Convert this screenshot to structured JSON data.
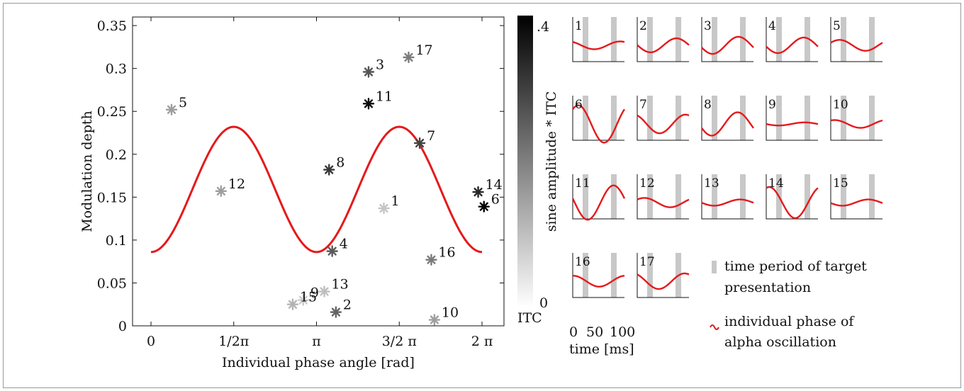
{
  "chart_data": [
    {
      "type": "scatter",
      "xlabel": "Individual phase angle [rad]",
      "ylabel": "Modulation depth",
      "xlim": [
        -0.35,
        6.7
      ],
      "ylim": [
        0,
        0.36
      ],
      "x_ticks": [
        {
          "value": 0,
          "label": "0"
        },
        {
          "value": 1.5708,
          "label": "1/2π"
        },
        {
          "value": 3.1416,
          "label": "π"
        },
        {
          "value": 4.7124,
          "label": "3/2 π"
        },
        {
          "value": 6.2832,
          "label": "2 π"
        }
      ],
      "y_ticks": [
        {
          "value": 0,
          "label": "0"
        },
        {
          "value": 0.05,
          "label": "0.05"
        },
        {
          "value": 0.1,
          "label": "0.1"
        },
        {
          "value": 0.15,
          "label": "0.15"
        },
        {
          "value": 0.2,
          "label": "0.2"
        },
        {
          "value": 0.25,
          "label": "0.25"
        },
        {
          "value": 0.3,
          "label": "0.3"
        },
        {
          "value": 0.35,
          "label": "0.35"
        }
      ],
      "points": [
        {
          "label": "1",
          "x": 4.42,
          "y": 0.137,
          "itc": 0.05
        },
        {
          "label": "2",
          "x": 3.51,
          "y": 0.016,
          "itc": 0.22
        },
        {
          "label": "3",
          "x": 4.13,
          "y": 0.296,
          "itc": 0.25
        },
        {
          "label": "4",
          "x": 3.44,
          "y": 0.087,
          "itc": 0.24
        },
        {
          "label": "5",
          "x": 0.39,
          "y": 0.252,
          "itc": 0.12
        },
        {
          "label": "6",
          "x": 6.32,
          "y": 0.139,
          "itc": 0.4
        },
        {
          "label": "7",
          "x": 5.1,
          "y": 0.213,
          "itc": 0.28
        },
        {
          "label": "8",
          "x": 3.38,
          "y": 0.182,
          "itc": 0.3
        },
        {
          "label": "9",
          "x": 2.89,
          "y": 0.03,
          "itc": 0.04
        },
        {
          "label": "10",
          "x": 5.38,
          "y": 0.007,
          "itc": 0.12
        },
        {
          "label": "11",
          "x": 4.13,
          "y": 0.259,
          "itc": 0.38
        },
        {
          "label": "12",
          "x": 1.33,
          "y": 0.157,
          "itc": 0.12
        },
        {
          "label": "13",
          "x": 3.29,
          "y": 0.04,
          "itc": 0.06
        },
        {
          "label": "14",
          "x": 6.21,
          "y": 0.156,
          "itc": 0.33
        },
        {
          "label": "15",
          "x": 2.69,
          "y": 0.025,
          "itc": 0.08
        },
        {
          "label": "16",
          "x": 5.32,
          "y": 0.077,
          "itc": 0.18
        },
        {
          "label": "17",
          "x": 4.89,
          "y": 0.313,
          "itc": 0.18
        }
      ],
      "curve": {
        "color": "#e41a1c",
        "offset": 0.159,
        "amplitude": 0.073,
        "description_formula": "offset - amplitude*cos(2x)"
      },
      "colorbar": {
        "label": "sine amplitude * ITC",
        "top_label": ".4",
        "bottom_label": "0",
        "unit_label": "ITC",
        "min": 0,
        "max": 0.4
      }
    },
    {
      "type": "line",
      "panels": [
        {
          "label": "1",
          "amplitude": 0.25,
          "phase": 2.1
        },
        {
          "label": "2",
          "amplitude": 0.45,
          "phase": 3.1
        },
        {
          "label": "3",
          "amplitude": 0.55,
          "phase": 3.4
        },
        {
          "label": "4",
          "amplitude": 0.5,
          "phase": 3.3
        },
        {
          "label": "5",
          "amplitude": 0.35,
          "phase": 0.5
        },
        {
          "label": "6",
          "amplitude": 1.2,
          "phase": 0.9
        },
        {
          "label": "7",
          "amplitude": 0.6,
          "phase": 2.0
        },
        {
          "label": "8",
          "amplitude": 0.75,
          "phase": 3.5
        },
        {
          "label": "9",
          "amplitude": 0.1,
          "phase": 3.2
        },
        {
          "label": "10",
          "amplitude": 0.25,
          "phase": 1.1
        },
        {
          "label": "11",
          "amplitude": 1.1,
          "phase": 2.9
        },
        {
          "label": "12",
          "amplitude": 0.3,
          "phase": 0.7
        },
        {
          "label": "13",
          "amplitude": 0.2,
          "phase": 3.2
        },
        {
          "label": "14",
          "amplitude": 1.0,
          "phase": 1.2
        },
        {
          "label": "15",
          "amplitude": 0.2,
          "phase": 3.3
        },
        {
          "label": "16",
          "amplitude": 0.35,
          "phase": 1.5
        },
        {
          "label": "17",
          "amplitude": 0.5,
          "phase": 2.1
        }
      ],
      "time_label": "time [ms]",
      "time_ticks": [
        "0",
        "50",
        "100"
      ],
      "legend": [
        {
          "marker": "gray-bar",
          "text_lines": [
            "time period of target",
            "presentation"
          ]
        },
        {
          "marker": "red-wave",
          "text_lines": [
            "individual phase of",
            "alpha oscillation"
          ]
        }
      ]
    }
  ],
  "colors": {
    "curve": "#e41a1c",
    "target_bar": "#c8c8c8"
  }
}
